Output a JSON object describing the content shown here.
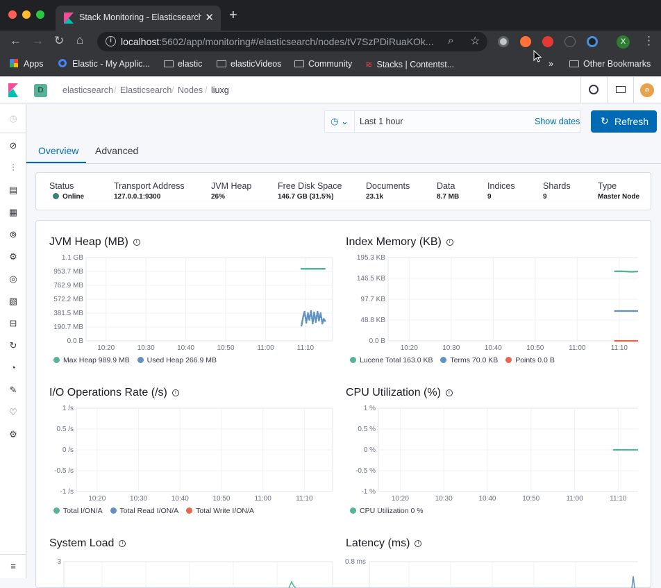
{
  "browser": {
    "tab_title": "Stack Monitoring - Elasticsearch",
    "tab_close": "✕",
    "new_tab": "+",
    "url_host": "localhost",
    "url_rest": ":5602/app/monitoring#/elasticsearch/nodes/tV7SzPDiRuaKOk...",
    "profile_initial": "X",
    "bookmarks": [
      "Apps",
      "Elastic - My Applic...",
      "elastic",
      "elasticVideos",
      "Community",
      "Stacks | Contentst..."
    ],
    "bookmarks_more": "»",
    "other_bookmarks": "Other Bookmarks"
  },
  "kibana": {
    "space_initial": "D",
    "user_initial": "e",
    "breadcrumbs": [
      "elasticsearch",
      "Elasticsearch",
      "Nodes",
      "liuxg"
    ],
    "time_range": "Last 1 hour",
    "show_dates": "Show dates",
    "refresh": "Refresh",
    "tabs": [
      "Overview",
      "Advanced"
    ],
    "active_tab": "Overview"
  },
  "status": [
    {
      "label": "Status",
      "value": "Online"
    },
    {
      "label": "Transport Address",
      "value": "127.0.0.1:9300"
    },
    {
      "label": "JVM Heap",
      "value": "26%"
    },
    {
      "label": "Free Disk Space",
      "value": "146.7 GB (31.5%)"
    },
    {
      "label": "Documents",
      "value": "23.1k"
    },
    {
      "label": "Data",
      "value": "8.7 MB"
    },
    {
      "label": "Indices",
      "value": "9"
    },
    {
      "label": "Shards",
      "value": "9"
    },
    {
      "label": "Type",
      "value": "Master Node"
    }
  ],
  "colors": {
    "teal": "#54b399",
    "blue": "#6092c0",
    "orange": "#e7664c",
    "online": "#3f7d74",
    "accent": "#006bb4"
  },
  "chart_data": [
    {
      "type": "line",
      "title": "JVM Heap (MB)",
      "x_ticks": [
        "10:20",
        "10:30",
        "10:40",
        "10:50",
        "11:00",
        "11:10"
      ],
      "y_ticks": [
        "1.1 GB",
        "953.7 MB",
        "762.9 MB",
        "572.2 MB",
        "381.5 MB",
        "190.7 MB",
        "0.0 B"
      ],
      "ylim": [
        0,
        1144
      ],
      "series": [
        {
          "name": "Max Heap",
          "legend": "Max Heap 989.9 MB",
          "color": "#54b399",
          "x": [
            11.15,
            11.167,
            11.183,
            11.2,
            11.217,
            11.233,
            11.25
          ],
          "values": [
            989.9,
            989.9,
            989.9,
            989.9,
            989.9,
            989.9,
            989.9
          ]
        },
        {
          "name": "Used Heap",
          "legend": "Used Heap 266.9 MB",
          "color": "#6092c0",
          "x": [
            11.15,
            11.157,
            11.163,
            11.17,
            11.177,
            11.183,
            11.19,
            11.197,
            11.203,
            11.21,
            11.217,
            11.223,
            11.23,
            11.237,
            11.243,
            11.25
          ],
          "values": [
            210,
            330,
            400,
            250,
            380,
            290,
            410,
            240,
            390,
            260,
            400,
            280,
            380,
            240,
            300,
            266.9
          ]
        }
      ]
    },
    {
      "type": "line",
      "title": "Index Memory (KB)",
      "x_ticks": [
        "10:20",
        "10:30",
        "10:40",
        "10:50",
        "11:00",
        "11:10"
      ],
      "y_ticks": [
        "195.3 KB",
        "146.5 KB",
        "97.7 KB",
        "48.8 KB",
        "0.0 B"
      ],
      "ylim": [
        0,
        195.3
      ],
      "series": [
        {
          "name": "Lucene Total",
          "legend": "Lucene Total 163.0 KB",
          "color": "#54b399",
          "x": [
            11.15,
            11.183,
            11.217,
            11.25
          ],
          "values": [
            163.0,
            163.0,
            162.0,
            163.0
          ]
        },
        {
          "name": "Terms",
          "legend": "Terms 70.0 KB",
          "color": "#6092c0",
          "x": [
            11.15,
            11.183,
            11.217,
            11.25
          ],
          "values": [
            70.0,
            70.0,
            70.0,
            70.0
          ]
        },
        {
          "name": "Points",
          "legend": "Points 0.0 B",
          "color": "#e7664c",
          "x": [
            11.15,
            11.183,
            11.217,
            11.25
          ],
          "values": [
            0,
            0,
            0,
            0
          ]
        }
      ]
    },
    {
      "type": "line",
      "title": "I/O Operations Rate (/s)",
      "x_ticks": [
        "10:20",
        "10:30",
        "10:40",
        "10:50",
        "11:00",
        "11:10"
      ],
      "y_ticks": [
        "1 /s",
        "0.5 /s",
        "0 /s",
        "-0.5 /s",
        "-1 /s"
      ],
      "ylim": [
        -1,
        1
      ],
      "series": [
        {
          "name": "Total I/O",
          "legend": "Total I/ON/A",
          "color": "#54b399",
          "x": [],
          "values": []
        },
        {
          "name": "Total Read I/O",
          "legend": "Total Read I/ON/A",
          "color": "#6092c0",
          "x": [],
          "values": []
        },
        {
          "name": "Total Write I/O",
          "legend": "Total Write I/ON/A",
          "color": "#e7664c",
          "x": [],
          "values": []
        }
      ]
    },
    {
      "type": "line",
      "title": "CPU Utilization (%)",
      "x_ticks": [
        "10:20",
        "10:30",
        "10:40",
        "10:50",
        "11:00",
        "11:10"
      ],
      "y_ticks": [
        "1 %",
        "0.5 %",
        "0 %",
        "-0.5 %",
        "-1 %"
      ],
      "ylim": [
        -1,
        1
      ],
      "series": [
        {
          "name": "CPU Utilization",
          "legend": "CPU Utilization 0 %",
          "color": "#54b399",
          "x": [
            11.15,
            11.183,
            11.217,
            11.25
          ],
          "values": [
            0,
            0,
            0,
            0
          ]
        }
      ]
    },
    {
      "type": "line",
      "title": "System Load",
      "y_ticks": [
        "3"
      ],
      "series": []
    },
    {
      "type": "line",
      "title": "Latency (ms)",
      "y_ticks": [
        "0.8 ms"
      ],
      "series": []
    }
  ]
}
